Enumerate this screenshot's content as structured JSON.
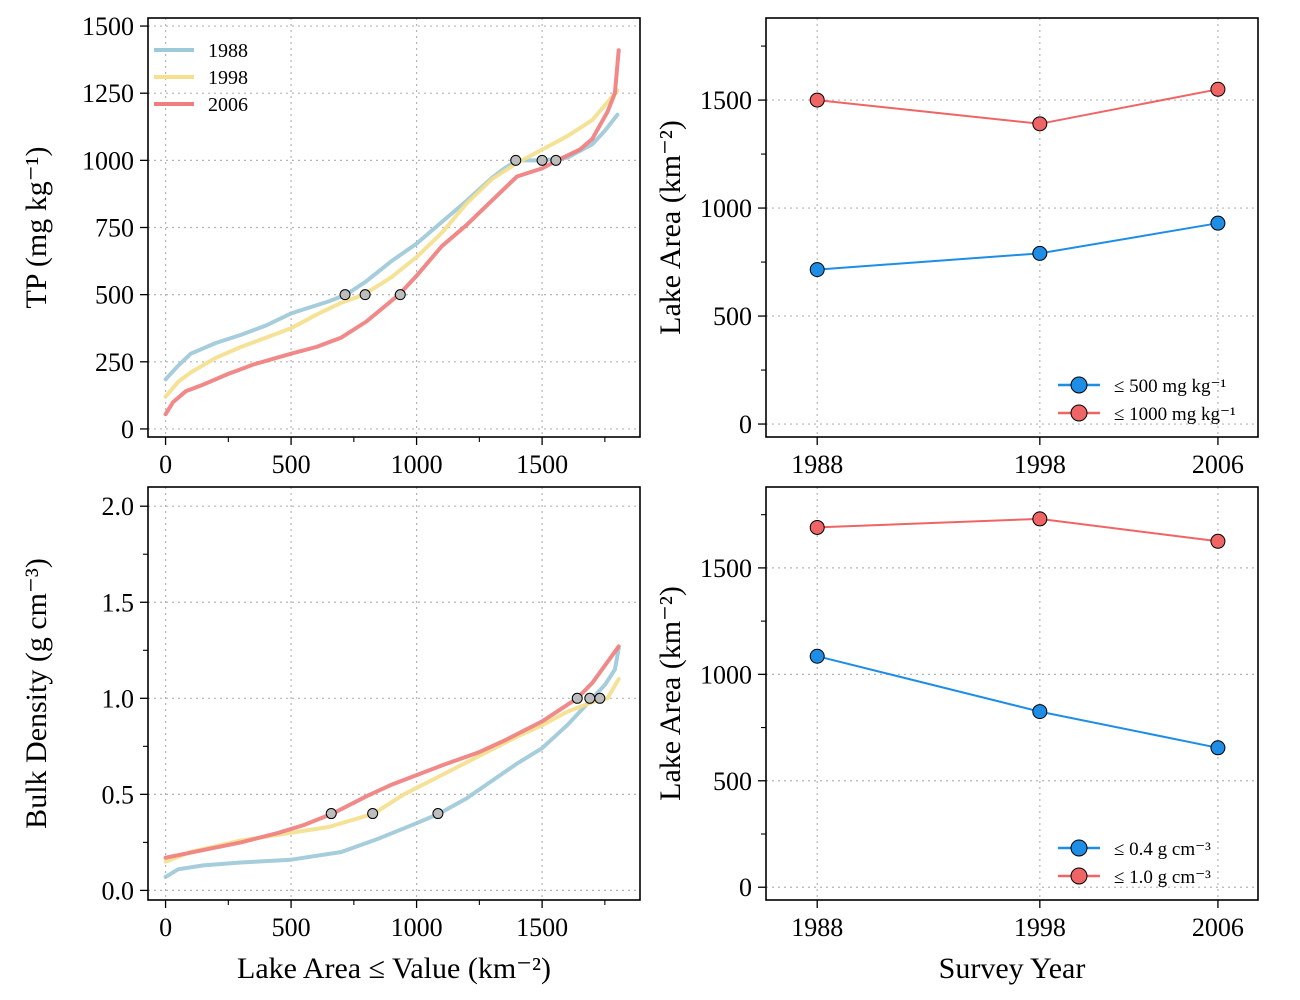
{
  "chart_data": [
    {
      "type": "line",
      "panel": "top-left",
      "xlabel": "",
      "ylabel": "TP (mg kg⁻¹)",
      "xlim": [
        -70,
        1890
      ],
      "ylim": [
        -30,
        1530
      ],
      "x_ticks": [
        0,
        500,
        1000,
        1500
      ],
      "y_ticks": [
        0,
        250,
        500,
        750,
        1000,
        1250,
        1500
      ],
      "grid": true,
      "legend_position": "top-left",
      "series": [
        {
          "name": "1988",
          "color": "#9ec9d8",
          "points": [
            [
              0,
              185
            ],
            [
              50,
              235
            ],
            [
              100,
              280
            ],
            [
              200,
              320
            ],
            [
              300,
              350
            ],
            [
              400,
              385
            ],
            [
              500,
              430
            ],
            [
              550,
              445
            ],
            [
              650,
              475
            ],
            [
              720,
              500
            ],
            [
              800,
              550
            ],
            [
              900,
              625
            ],
            [
              1000,
              690
            ],
            [
              1100,
              770
            ],
            [
              1200,
              850
            ],
            [
              1300,
              935
            ],
            [
              1350,
              970
            ],
            [
              1400,
              1000
            ],
            [
              1500,
              1000
            ],
            [
              1600,
              1010
            ],
            [
              1700,
              1060
            ],
            [
              1750,
              1110
            ],
            [
              1800,
              1170
            ]
          ]
        },
        {
          "name": "1998",
          "color": "#f4e08d",
          "points": [
            [
              0,
              120
            ],
            [
              50,
              175
            ],
            [
              100,
              210
            ],
            [
              200,
              265
            ],
            [
              300,
              305
            ],
            [
              400,
              340
            ],
            [
              500,
              375
            ],
            [
              600,
              425
            ],
            [
              700,
              470
            ],
            [
              790,
              500
            ],
            [
              900,
              565
            ],
            [
              1000,
              640
            ],
            [
              1100,
              730
            ],
            [
              1200,
              840
            ],
            [
              1300,
              930
            ],
            [
              1400,
              990
            ],
            [
              1500,
              1040
            ],
            [
              1600,
              1090
            ],
            [
              1700,
              1150
            ],
            [
              1800,
              1260
            ]
          ]
        },
        {
          "name": "2006",
          "color": "#ef7f7e",
          "points": [
            [
              0,
              55
            ],
            [
              30,
              100
            ],
            [
              80,
              140
            ],
            [
              150,
              165
            ],
            [
              250,
              205
            ],
            [
              350,
              240
            ],
            [
              500,
              280
            ],
            [
              600,
              305
            ],
            [
              700,
              340
            ],
            [
              800,
              400
            ],
            [
              930,
              500
            ],
            [
              1000,
              570
            ],
            [
              1100,
              680
            ],
            [
              1200,
              760
            ],
            [
              1300,
              850
            ],
            [
              1400,
              940
            ],
            [
              1500,
              970
            ],
            [
              1560,
              1000
            ],
            [
              1650,
              1040
            ],
            [
              1700,
              1080
            ],
            [
              1760,
              1180
            ],
            [
              1790,
              1250
            ],
            [
              1805,
              1410
            ]
          ]
        }
      ],
      "threshold_points": [
        [
          715,
          500
        ],
        [
          795,
          500
        ],
        [
          935,
          500
        ],
        [
          1395,
          1000
        ],
        [
          1500,
          1000
        ],
        [
          1555,
          1000
        ]
      ]
    },
    {
      "type": "line",
      "panel": "top-right",
      "xlabel": "",
      "ylabel": "Lake Area (km⁻²)",
      "xlim": [
        1985.7,
        2007.8
      ],
      "ylim": [
        -60,
        1880
      ],
      "x_ticks": [
        1988,
        1998,
        2006
      ],
      "y_ticks": [
        0,
        500,
        1000,
        1500
      ],
      "grid": true,
      "legend_position": "bottom-right",
      "series": [
        {
          "name": "≤ 500 mg kg⁻¹",
          "color": "#1e8de6",
          "x": [
            1988,
            1998,
            2006
          ],
          "values": [
            715,
            790,
            930
          ]
        },
        {
          "name": "≤ 1000 mg kg⁻¹",
          "color": "#ef6464",
          "x": [
            1988,
            1998,
            2006
          ],
          "values": [
            1500,
            1390,
            1550
          ]
        }
      ]
    },
    {
      "type": "line",
      "panel": "bottom-left",
      "xlabel": "Lake Area ≤ Value (km⁻²)",
      "ylabel": "Bulk Density (g cm⁻³)",
      "xlim": [
        -70,
        1890
      ],
      "ylim": [
        -0.05,
        2.1
      ],
      "x_ticks": [
        0,
        500,
        1000,
        1500
      ],
      "y_ticks": [
        "0.0",
        "0.5",
        "1.0",
        "1.5",
        "2.0"
      ],
      "grid": true,
      "series": [
        {
          "name": "1988",
          "color": "#9ec9d8",
          "points": [
            [
              0,
              0.07
            ],
            [
              50,
              0.11
            ],
            [
              150,
              0.13
            ],
            [
              300,
              0.145
            ],
            [
              500,
              0.16
            ],
            [
              700,
              0.2
            ],
            [
              850,
              0.27
            ],
            [
              1000,
              0.35
            ],
            [
              1090,
              0.4
            ],
            [
              1200,
              0.48
            ],
            [
              1300,
              0.57
            ],
            [
              1400,
              0.66
            ],
            [
              1500,
              0.74
            ],
            [
              1600,
              0.86
            ],
            [
              1650,
              0.93
            ],
            [
              1700,
              1.0
            ],
            [
              1750,
              1.07
            ],
            [
              1790,
              1.15
            ],
            [
              1805,
              1.26
            ]
          ]
        },
        {
          "name": "1998",
          "color": "#f4e08d",
          "points": [
            [
              0,
              0.15
            ],
            [
              100,
              0.2
            ],
            [
              300,
              0.26
            ],
            [
              500,
              0.3
            ],
            [
              650,
              0.33
            ],
            [
              830,
              0.4
            ],
            [
              950,
              0.5
            ],
            [
              1100,
              0.6
            ],
            [
              1250,
              0.7
            ],
            [
              1400,
              0.8
            ],
            [
              1500,
              0.86
            ],
            [
              1600,
              0.93
            ],
            [
              1700,
              0.98
            ],
            [
              1760,
              1.0
            ],
            [
              1805,
              1.1
            ]
          ]
        },
        {
          "name": "2006",
          "color": "#ef7f7e",
          "points": [
            [
              0,
              0.17
            ],
            [
              150,
              0.21
            ],
            [
              300,
              0.25
            ],
            [
              450,
              0.3
            ],
            [
              550,
              0.34
            ],
            [
              665,
              0.4
            ],
            [
              800,
              0.49
            ],
            [
              900,
              0.55
            ],
            [
              1000,
              0.6
            ],
            [
              1100,
              0.65
            ],
            [
              1250,
              0.72
            ],
            [
              1350,
              0.78
            ],
            [
              1500,
              0.88
            ],
            [
              1640,
              1.0
            ],
            [
              1700,
              1.08
            ],
            [
              1750,
              1.17
            ],
            [
              1805,
              1.27
            ]
          ]
        }
      ],
      "threshold_points": [
        [
          660,
          0.4
        ],
        [
          825,
          0.4
        ],
        [
          1085,
          0.4
        ],
        [
          1640,
          1.0
        ],
        [
          1690,
          1.0
        ],
        [
          1730,
          1.0
        ]
      ]
    },
    {
      "type": "line",
      "panel": "bottom-right",
      "xlabel": "Survey Year",
      "ylabel": "Lake Area (km⁻²)",
      "xlim": [
        1985.7,
        2007.8
      ],
      "ylim": [
        -60,
        1880
      ],
      "x_ticks": [
        1988,
        1998,
        2006
      ],
      "y_ticks": [
        0,
        500,
        1000,
        1500
      ],
      "grid": true,
      "legend_position": "bottom-right",
      "series": [
        {
          "name": "≤ 0.4 g cm⁻³",
          "color": "#1e8de6",
          "x": [
            1988,
            1998,
            2006
          ],
          "values": [
            1085,
            825,
            655
          ]
        },
        {
          "name": "≤ 1.0 g cm⁻³",
          "color": "#ef6464",
          "x": [
            1988,
            1998,
            2006
          ],
          "values": [
            1690,
            1730,
            1625
          ]
        }
      ]
    }
  ]
}
